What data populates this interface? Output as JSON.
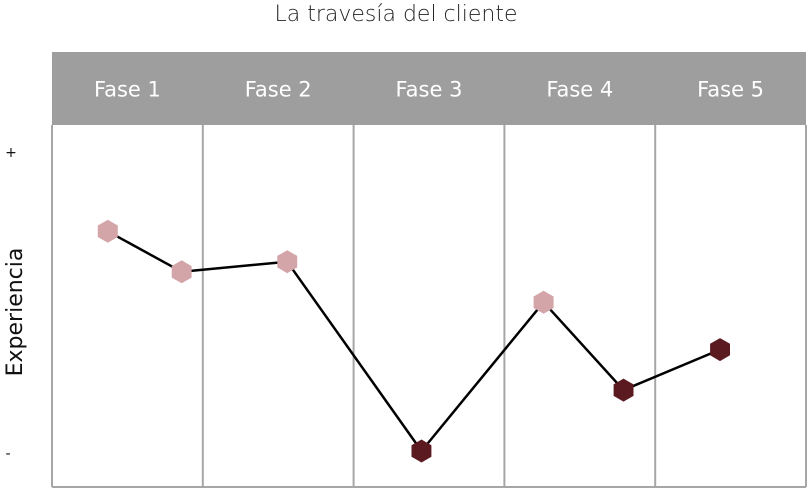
{
  "chart_data": {
    "type": "line",
    "title": "La travesía del cliente",
    "ylabel": "Experiencia",
    "y_top_label": "+",
    "y_bottom_label": "-",
    "phases": [
      "Fase 1",
      "Fase 2",
      "Fase 3",
      "Fase 4",
      "Fase 5"
    ],
    "ylim": [
      0,
      100
    ],
    "series": [
      {
        "points": [
          {
            "x": 0.37,
            "y": 73,
            "tone": "positive"
          },
          {
            "x": 0.86,
            "y": 61,
            "tone": "positive"
          },
          {
            "x": 1.56,
            "y": 64,
            "tone": "positive"
          },
          {
            "x": 2.45,
            "y": 8,
            "tone": "negative"
          },
          {
            "x": 3.26,
            "y": 52,
            "tone": "positive"
          },
          {
            "x": 3.79,
            "y": 26,
            "tone": "negative"
          },
          {
            "x": 4.43,
            "y": 38,
            "tone": "negative"
          }
        ]
      }
    ],
    "colors": {
      "header": "#9e9e9e",
      "grid": "#a6a6a6",
      "line": "#000000",
      "positive": "#d4a5a8",
      "negative": "#5a1a20"
    }
  }
}
